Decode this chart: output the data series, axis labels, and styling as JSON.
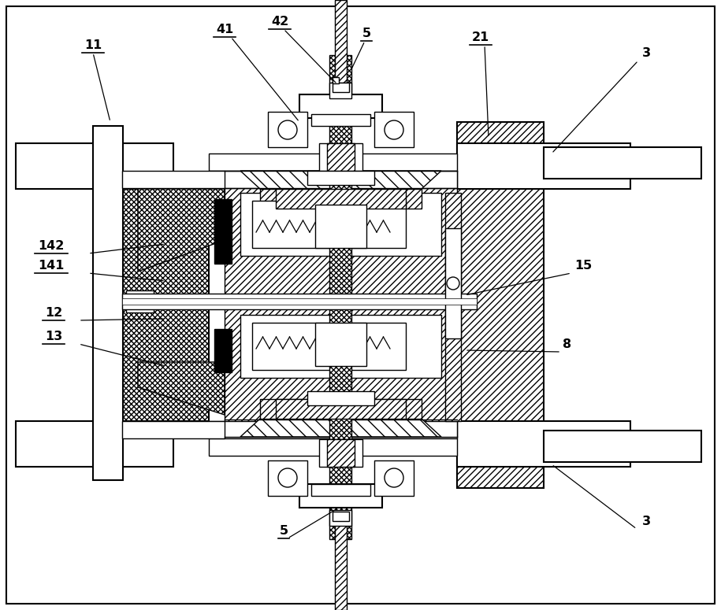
{
  "bg_color": "#ffffff",
  "lc": "#000000",
  "fig_width": 9.15,
  "fig_height": 7.75,
  "dpi": 100
}
